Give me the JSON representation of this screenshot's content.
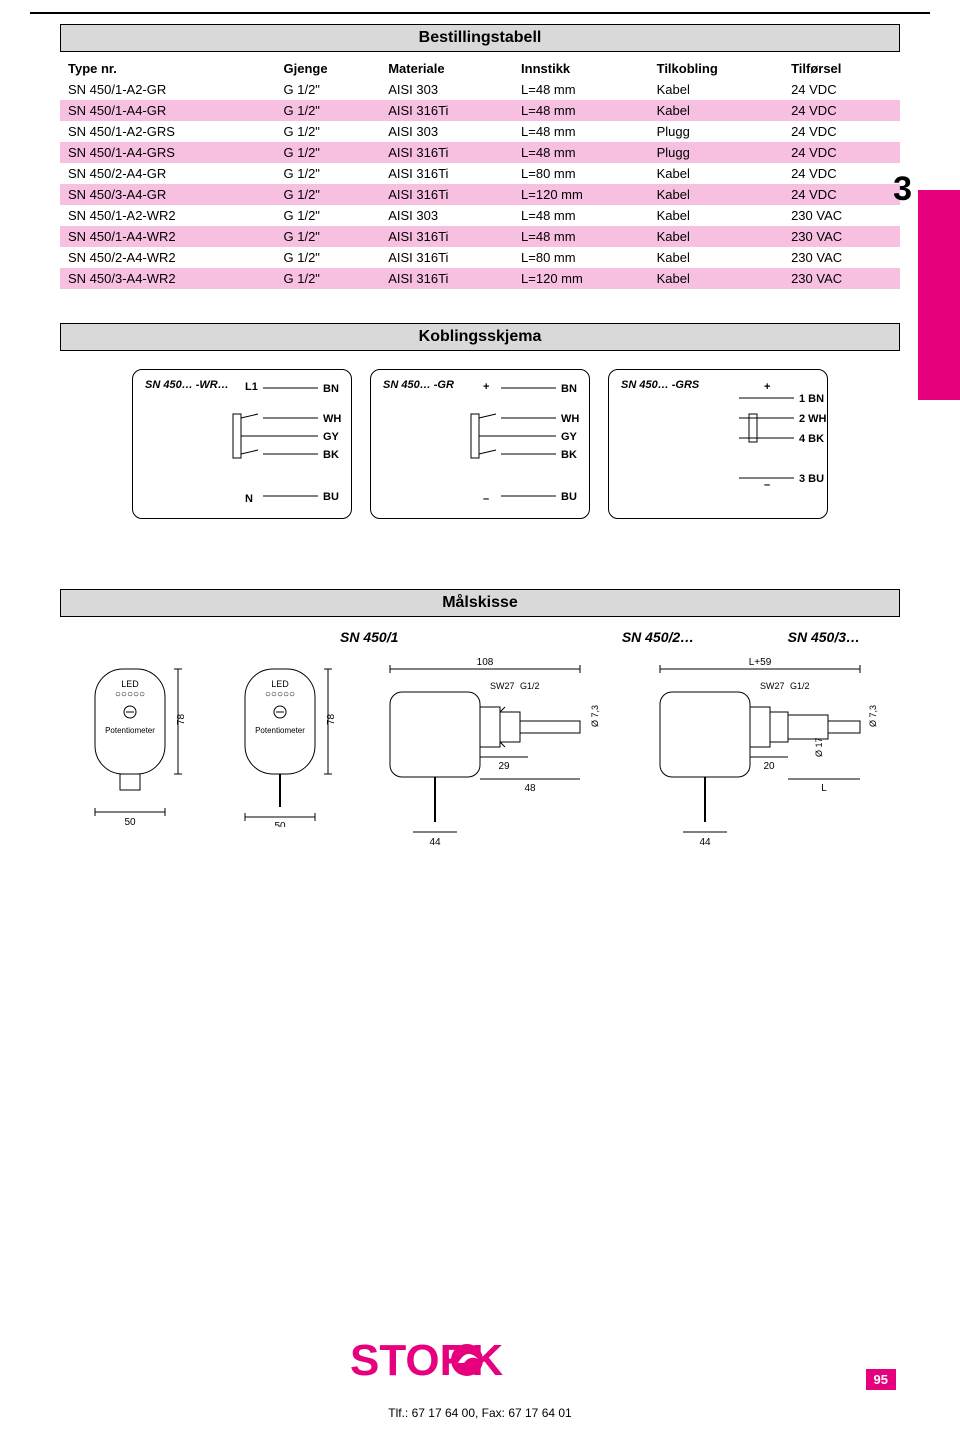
{
  "top_table": {
    "title": "Bestillingstabell",
    "columns": [
      "Type nr.",
      "Gjenge",
      "Materiale",
      "Innstikk",
      "Tilkobling",
      "Tilførsel"
    ],
    "rows": [
      {
        "c": [
          "SN 450/1-A2-GR",
          "G 1/2\"",
          "AISI 303",
          "L=48 mm",
          "Kabel",
          "24 VDC"
        ],
        "bg": "#ffffff"
      },
      {
        "c": [
          "SN 450/1-A4-GR",
          "G 1/2\"",
          "AISI 316Ti",
          "L=48 mm",
          "Kabel",
          "24 VDC"
        ],
        "bg": "#f7bfe0"
      },
      {
        "c": [
          "SN 450/1-A2-GRS",
          "G 1/2\"",
          "AISI 303",
          "L=48 mm",
          "Plugg",
          "24 VDC"
        ],
        "bg": "#ffffff"
      },
      {
        "c": [
          "SN 450/1-A4-GRS",
          "G 1/2\"",
          "AISI 316Ti",
          "L=48 mm",
          "Plugg",
          "24 VDC"
        ],
        "bg": "#f7bfe0"
      },
      {
        "c": [
          "SN 450/2-A4-GR",
          "G 1/2\"",
          "AISI 316Ti",
          "L=80 mm",
          "Kabel",
          "24 VDC"
        ],
        "bg": "#ffffff"
      },
      {
        "c": [
          "SN 450/3-A4-GR",
          "G 1/2\"",
          "AISI 316Ti",
          "L=120 mm",
          "Kabel",
          "24 VDC"
        ],
        "bg": "#f7bfe0"
      },
      {
        "c": [
          "SN 450/1-A2-WR2",
          "G 1/2\"",
          "AISI 303",
          "L=48 mm",
          "Kabel",
          "230 VAC"
        ],
        "bg": "#ffffff"
      },
      {
        "c": [
          "SN 450/1-A4-WR2",
          "G 1/2\"",
          "AISI 316Ti",
          "L=48 mm",
          "Kabel",
          "230 VAC"
        ],
        "bg": "#f7bfe0"
      },
      {
        "c": [
          "SN 450/2-A4-WR2",
          "G 1/2\"",
          "AISI 316Ti",
          "L=80 mm",
          "Kabel",
          "230 VAC"
        ],
        "bg": "#ffffff"
      },
      {
        "c": [
          "SN 450/3-A4-WR2",
          "G 1/2\"",
          "AISI 316Ti",
          "L=120 mm",
          "Kabel",
          "230 VAC"
        ],
        "bg": "#f7bfe0"
      }
    ]
  },
  "wiring": {
    "title": "Koblingsskjema",
    "boxes": [
      {
        "label": "SN 450… -WR…",
        "left_top": "L1",
        "left_bot": "N",
        "pins": [
          "BN",
          "WH",
          "GY",
          "BK",
          "BU"
        ]
      },
      {
        "label": "SN 450… -GR",
        "left_top": "+",
        "left_bot": "–",
        "pins": [
          "BN",
          "WH",
          "GY",
          "BK",
          "BU"
        ]
      },
      {
        "label": "SN 450… -GRS",
        "left_top": "+",
        "left_bot": "–",
        "pins": [
          "1 BN",
          "2 WH",
          "4 BK",
          "3 BU"
        ]
      }
    ]
  },
  "dims": {
    "title": "Målskisse",
    "labels": {
      "a": "SN 450/1",
      "b": "SN 450/2…",
      "c": "SN 450/3…"
    },
    "sensor_front": {
      "led": "LED",
      "pot": "Potentiometer",
      "width": "50",
      "height": "78"
    },
    "probe1": {
      "total": "108",
      "sw": "SW27",
      "thread": "G1/2",
      "dia": "Ø 7,3",
      "a": "29",
      "b": "48",
      "c": "44"
    },
    "probe2": {
      "total": "L+59",
      "sw": "SW27",
      "thread": "G1/2",
      "dia": "Ø 7,3",
      "dia2": "Ø 17",
      "a": "20",
      "L": "L",
      "c": "44"
    }
  },
  "side_number": "3",
  "page_number": "95",
  "logo": "STORK",
  "footer": "Tlf.: 67 17 64 00, Fax: 67 17 64 01"
}
